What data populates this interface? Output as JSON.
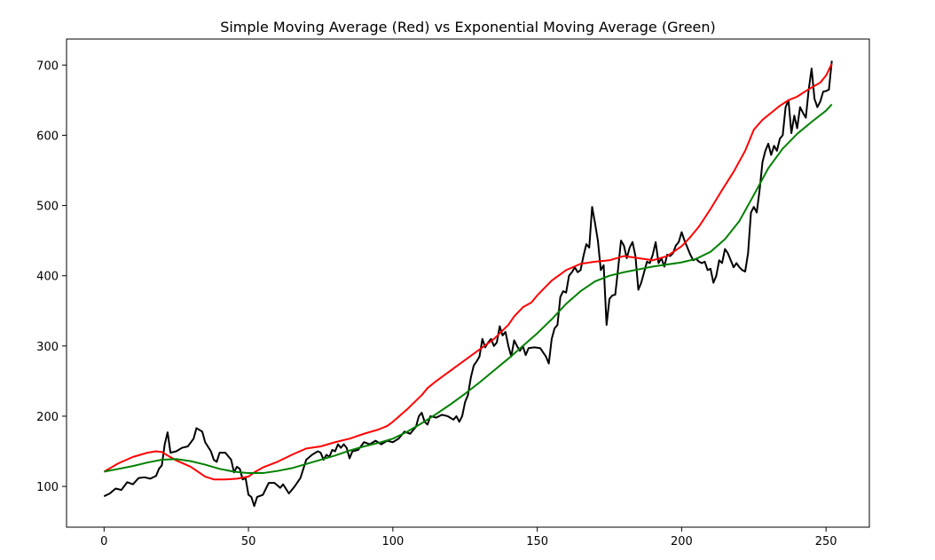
{
  "chart_data": {
    "type": "line",
    "title": "Simple Moving Average (Red) vs Exponential Moving Average (Green)",
    "xlabel": "",
    "ylabel": "",
    "xlim": [
      -13,
      265
    ],
    "ylim": [
      42,
      737
    ],
    "xticks": [
      0,
      50,
      100,
      150,
      200,
      250
    ],
    "yticks": [
      100,
      200,
      300,
      400,
      500,
      600,
      700
    ],
    "grid": false,
    "legend": "none",
    "series": [
      {
        "color": "#000000",
        "points": [
          [
            0,
            86
          ],
          [
            2,
            90
          ],
          [
            4,
            97
          ],
          [
            6,
            95
          ],
          [
            8,
            106
          ],
          [
            10,
            103
          ],
          [
            12,
            112
          ],
          [
            14,
            113
          ],
          [
            16,
            111
          ],
          [
            18,
            115
          ],
          [
            19,
            125
          ],
          [
            20,
            130
          ],
          [
            21,
            160
          ],
          [
            22,
            177
          ],
          [
            23,
            148
          ],
          [
            25,
            150
          ],
          [
            27,
            155
          ],
          [
            29,
            157
          ],
          [
            31,
            168
          ],
          [
            32,
            183
          ],
          [
            34,
            178
          ],
          [
            35,
            163
          ],
          [
            37,
            150
          ],
          [
            38,
            138
          ],
          [
            39,
            135
          ],
          [
            40,
            148
          ],
          [
            42,
            148
          ],
          [
            44,
            138
          ],
          [
            45,
            120
          ],
          [
            46,
            128
          ],
          [
            47,
            125
          ],
          [
            48,
            110
          ],
          [
            49,
            112
          ],
          [
            50,
            88
          ],
          [
            51,
            85
          ],
          [
            52,
            72
          ],
          [
            53,
            85
          ],
          [
            55,
            88
          ],
          [
            57,
            105
          ],
          [
            59,
            105
          ],
          [
            61,
            98
          ],
          [
            62,
            103
          ],
          [
            64,
            90
          ],
          [
            66,
            100
          ],
          [
            68,
            112
          ],
          [
            70,
            138
          ],
          [
            72,
            145
          ],
          [
            74,
            150
          ],
          [
            75,
            148
          ],
          [
            76,
            138
          ],
          [
            77,
            145
          ],
          [
            78,
            142
          ],
          [
            79,
            152
          ],
          [
            80,
            150
          ],
          [
            81,
            160
          ],
          [
            82,
            155
          ],
          [
            83,
            160
          ],
          [
            84,
            155
          ],
          [
            85,
            140
          ],
          [
            86,
            150
          ],
          [
            88,
            152
          ],
          [
            90,
            163
          ],
          [
            92,
            160
          ],
          [
            94,
            165
          ],
          [
            96,
            160
          ],
          [
            98,
            165
          ],
          [
            100,
            163
          ],
          [
            102,
            168
          ],
          [
            104,
            178
          ],
          [
            106,
            175
          ],
          [
            108,
            185
          ],
          [
            109,
            200
          ],
          [
            110,
            205
          ],
          [
            111,
            192
          ],
          [
            112,
            188
          ],
          [
            113,
            200
          ],
          [
            115,
            198
          ],
          [
            117,
            202
          ],
          [
            119,
            200
          ],
          [
            121,
            195
          ],
          [
            122,
            200
          ],
          [
            123,
            192
          ],
          [
            124,
            200
          ],
          [
            125,
            220
          ],
          [
            126,
            230
          ],
          [
            127,
            255
          ],
          [
            128,
            272
          ],
          [
            129,
            278
          ],
          [
            130,
            285
          ],
          [
            131,
            310
          ],
          [
            132,
            298
          ],
          [
            133,
            305
          ],
          [
            134,
            310
          ],
          [
            135,
            300
          ],
          [
            136,
            305
          ],
          [
            137,
            328
          ],
          [
            138,
            315
          ],
          [
            139,
            320
          ],
          [
            140,
            300
          ],
          [
            141,
            285
          ],
          [
            142,
            308
          ],
          [
            143,
            300
          ],
          [
            144,
            293
          ],
          [
            145,
            300
          ],
          [
            146,
            287
          ],
          [
            147,
            297
          ],
          [
            149,
            298
          ],
          [
            151,
            297
          ],
          [
            153,
            285
          ],
          [
            154,
            275
          ],
          [
            155,
            310
          ],
          [
            156,
            325
          ],
          [
            157,
            330
          ],
          [
            158,
            370
          ],
          [
            159,
            378
          ],
          [
            160,
            376
          ],
          [
            161,
            400
          ],
          [
            162,
            405
          ],
          [
            163,
            412
          ],
          [
            164,
            405
          ],
          [
            165,
            408
          ],
          [
            166,
            428
          ],
          [
            167,
            445
          ],
          [
            168,
            440
          ],
          [
            169,
            498
          ],
          [
            170,
            475
          ],
          [
            171,
            450
          ],
          [
            172,
            408
          ],
          [
            173,
            415
          ],
          [
            174,
            330
          ],
          [
            175,
            367
          ],
          [
            176,
            372
          ],
          [
            177,
            373
          ],
          [
            178,
            410
          ],
          [
            179,
            450
          ],
          [
            180,
            443
          ],
          [
            181,
            425
          ],
          [
            182,
            440
          ],
          [
            183,
            448
          ],
          [
            184,
            428
          ],
          [
            185,
            380
          ],
          [
            186,
            390
          ],
          [
            187,
            405
          ],
          [
            188,
            420
          ],
          [
            189,
            418
          ],
          [
            190,
            430
          ],
          [
            191,
            448
          ],
          [
            192,
            418
          ],
          [
            193,
            425
          ],
          [
            194,
            413
          ],
          [
            195,
            430
          ],
          [
            196,
            428
          ],
          [
            197,
            432
          ],
          [
            198,
            443
          ],
          [
            199,
            448
          ],
          [
            200,
            462
          ],
          [
            201,
            450
          ],
          [
            202,
            440
          ],
          [
            203,
            430
          ],
          [
            204,
            422
          ],
          [
            205,
            424
          ],
          [
            206,
            420
          ],
          [
            207,
            418
          ],
          [
            208,
            420
          ],
          [
            209,
            408
          ],
          [
            210,
            410
          ],
          [
            211,
            390
          ],
          [
            212,
            400
          ],
          [
            213,
            422
          ],
          [
            214,
            418
          ],
          [
            215,
            438
          ],
          [
            216,
            432
          ],
          [
            217,
            422
          ],
          [
            218,
            412
          ],
          [
            219,
            418
          ],
          [
            220,
            412
          ],
          [
            221,
            408
          ],
          [
            222,
            406
          ],
          [
            223,
            432
          ],
          [
            224,
            490
          ],
          [
            225,
            498
          ],
          [
            226,
            490
          ],
          [
            227,
            522
          ],
          [
            228,
            562
          ],
          [
            229,
            578
          ],
          [
            230,
            588
          ],
          [
            231,
            572
          ],
          [
            232,
            585
          ],
          [
            233,
            578
          ],
          [
            234,
            595
          ],
          [
            235,
            600
          ],
          [
            236,
            640
          ],
          [
            237,
            650
          ],
          [
            238,
            603
          ],
          [
            239,
            628
          ],
          [
            240,
            610
          ],
          [
            241,
            640
          ],
          [
            242,
            632
          ],
          [
            243,
            625
          ],
          [
            244,
            665
          ],
          [
            245,
            695
          ],
          [
            246,
            652
          ],
          [
            247,
            640
          ],
          [
            248,
            648
          ],
          [
            249,
            662
          ],
          [
            250,
            663
          ],
          [
            251,
            665
          ],
          [
            252,
            706
          ]
        ]
      },
      {
        "color": "#ff0000",
        "points": [
          [
            0,
            121
          ],
          [
            5,
            133
          ],
          [
            10,
            142
          ],
          [
            15,
            148
          ],
          [
            18,
            150
          ],
          [
            20,
            149
          ],
          [
            22,
            144
          ],
          [
            25,
            137
          ],
          [
            30,
            128
          ],
          [
            35,
            114
          ],
          [
            38,
            110
          ],
          [
            42,
            110
          ],
          [
            46,
            111
          ],
          [
            50,
            114
          ],
          [
            52,
            120
          ],
          [
            55,
            127
          ],
          [
            60,
            135
          ],
          [
            65,
            145
          ],
          [
            70,
            154
          ],
          [
            75,
            157
          ],
          [
            80,
            163
          ],
          [
            85,
            168
          ],
          [
            90,
            175
          ],
          [
            95,
            181
          ],
          [
            98,
            186
          ],
          [
            100,
            192
          ],
          [
            105,
            210
          ],
          [
            110,
            230
          ],
          [
            112,
            240
          ],
          [
            115,
            250
          ],
          [
            120,
            265
          ],
          [
            125,
            280
          ],
          [
            130,
            295
          ],
          [
            135,
            310
          ],
          [
            140,
            330
          ],
          [
            142,
            342
          ],
          [
            145,
            355
          ],
          [
            148,
            362
          ],
          [
            150,
            372
          ],
          [
            155,
            393
          ],
          [
            160,
            408
          ],
          [
            165,
            417
          ],
          [
            170,
            420
          ],
          [
            175,
            422
          ],
          [
            180,
            428
          ],
          [
            185,
            425
          ],
          [
            190,
            422
          ],
          [
            195,
            428
          ],
          [
            200,
            442
          ],
          [
            203,
            455
          ],
          [
            206,
            470
          ],
          [
            210,
            495
          ],
          [
            214,
            522
          ],
          [
            218,
            548
          ],
          [
            222,
            578
          ],
          [
            225,
            608
          ],
          [
            228,
            622
          ],
          [
            231,
            632
          ],
          [
            234,
            642
          ],
          [
            237,
            650
          ],
          [
            240,
            655
          ],
          [
            243,
            663
          ],
          [
            245,
            668
          ],
          [
            248,
            675
          ],
          [
            250,
            685
          ],
          [
            252,
            702
          ]
        ]
      },
      {
        "color": "#008000",
        "points": [
          [
            0,
            121
          ],
          [
            5,
            125
          ],
          [
            10,
            129
          ],
          [
            15,
            134
          ],
          [
            20,
            138
          ],
          [
            25,
            139
          ],
          [
            30,
            136
          ],
          [
            35,
            131
          ],
          [
            40,
            125
          ],
          [
            45,
            121
          ],
          [
            50,
            119
          ],
          [
            55,
            119
          ],
          [
            60,
            122
          ],
          [
            65,
            126
          ],
          [
            70,
            132
          ],
          [
            75,
            138
          ],
          [
            80,
            144
          ],
          [
            85,
            151
          ],
          [
            90,
            157
          ],
          [
            95,
            162
          ],
          [
            100,
            168
          ],
          [
            105,
            178
          ],
          [
            110,
            190
          ],
          [
            115,
            203
          ],
          [
            120,
            217
          ],
          [
            125,
            232
          ],
          [
            130,
            248
          ],
          [
            135,
            265
          ],
          [
            140,
            282
          ],
          [
            145,
            300
          ],
          [
            150,
            318
          ],
          [
            155,
            338
          ],
          [
            160,
            360
          ],
          [
            165,
            378
          ],
          [
            170,
            392
          ],
          [
            175,
            400
          ],
          [
            180,
            405
          ],
          [
            185,
            409
          ],
          [
            190,
            413
          ],
          [
            195,
            416
          ],
          [
            200,
            419
          ],
          [
            205,
            424
          ],
          [
            210,
            434
          ],
          [
            215,
            452
          ],
          [
            220,
            478
          ],
          [
            225,
            515
          ],
          [
            230,
            553
          ],
          [
            235,
            581
          ],
          [
            240,
            602
          ],
          [
            245,
            619
          ],
          [
            250,
            635
          ],
          [
            252,
            644
          ]
        ]
      }
    ]
  }
}
